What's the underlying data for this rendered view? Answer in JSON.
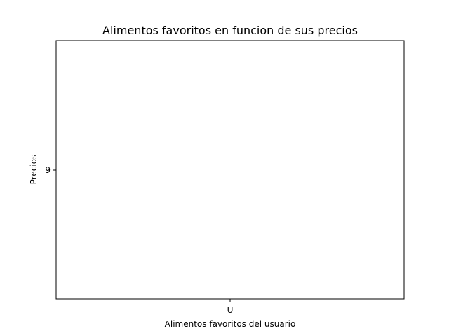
{
  "chart_data": {
    "type": "scatter",
    "title": "Alimentos favoritos en funcion de sus precios",
    "xlabel": "Alimentos favoritos del usuario",
    "ylabel": "Precios",
    "categories": [
      "U"
    ],
    "y_ticks": [
      "9"
    ],
    "series": [
      {
        "values": [],
        "color": "#1f77b4"
      }
    ],
    "grid": false,
    "legend": "none"
  }
}
